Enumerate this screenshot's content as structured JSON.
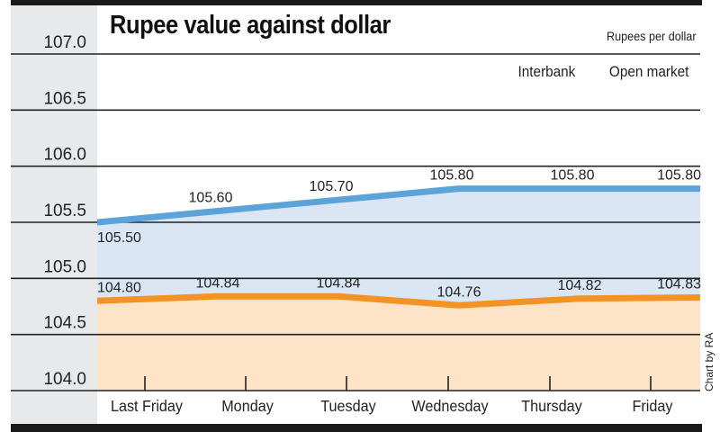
{
  "chart_data": {
    "type": "line",
    "title": "Rupee value against dollar",
    "ylabel": "Rupees per dollar",
    "xlabel": "",
    "categories": [
      "Last Friday",
      "Monday",
      "Tuesday",
      "Wednesday",
      "Thursday",
      "Friday"
    ],
    "series": [
      {
        "name": "Open market",
        "color": "#5ba3d9",
        "fill": "#dae6f3",
        "values": [
          105.5,
          105.6,
          105.7,
          105.8,
          105.8,
          105.8
        ],
        "labels": [
          "105.50",
          "105.60",
          "105.70",
          "105.80",
          "105.80",
          "105.80"
        ]
      },
      {
        "name": "Interbank",
        "color": "#f39325",
        "fill": "#fde3c7",
        "values": [
          104.8,
          104.84,
          104.84,
          104.76,
          104.82,
          104.83
        ],
        "labels": [
          "104.80",
          "104.84",
          "104.84",
          "104.76",
          "104.82",
          "104.83"
        ]
      }
    ],
    "legend": [
      "Interbank",
      "Open market"
    ],
    "ylim": [
      104.0,
      107.0
    ],
    "yticks": [
      "104.0",
      "104.5",
      "105.0",
      "105.5",
      "106.0",
      "106.5",
      "107.0"
    ],
    "grid": true,
    "credit": "Chart by RA"
  }
}
